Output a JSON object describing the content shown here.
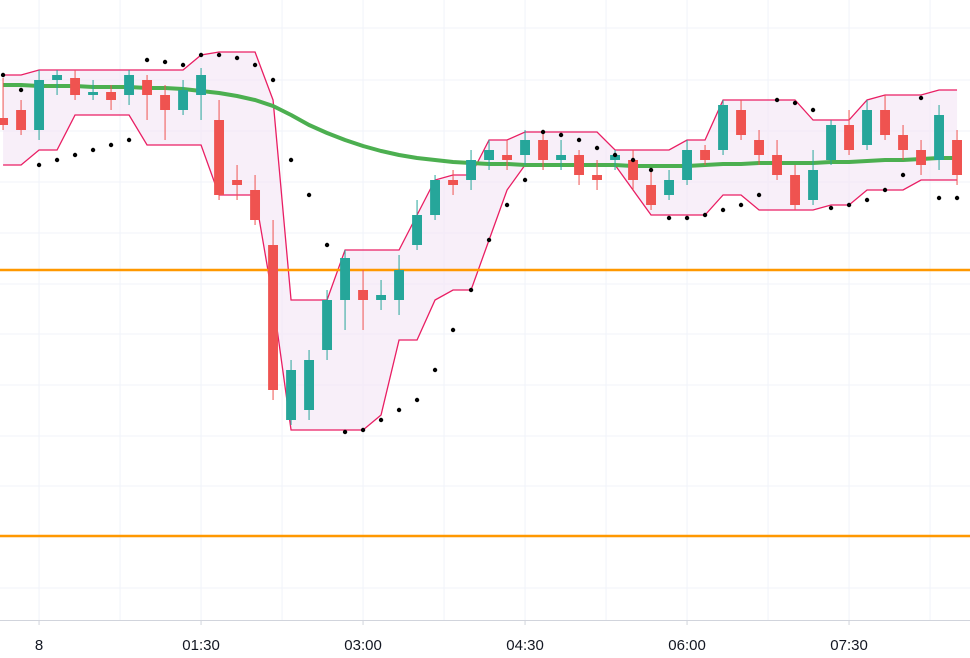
{
  "chart_data": {
    "type": "candlestick",
    "x": [
      -20,
      -10,
      0,
      10,
      20,
      30,
      40,
      50,
      60,
      70,
      80,
      90,
      100,
      110,
      120,
      130,
      140,
      150,
      160,
      170,
      180,
      190,
      200,
      210,
      220,
      230,
      240,
      250,
      260,
      270,
      280,
      290,
      300,
      310,
      320,
      330,
      340,
      350,
      360,
      370,
      380,
      390,
      400,
      410,
      420,
      430,
      440,
      450,
      460,
      470,
      480,
      490,
      500,
      510
    ],
    "open": [
      502,
      510,
      490,
      540,
      542,
      525,
      528,
      525,
      540,
      525,
      510,
      525,
      500,
      440,
      430,
      375,
      200,
      210,
      270,
      320,
      330,
      320,
      320,
      375,
      405,
      440,
      440,
      460,
      465,
      465,
      480,
      460,
      465,
      445,
      460,
      460,
      435,
      425,
      440,
      470,
      470,
      510,
      480,
      465,
      445,
      420,
      460,
      495,
      475,
      510,
      485,
      470,
      460,
      480
    ],
    "high": [
      542,
      520,
      550,
      550,
      550,
      540,
      535,
      550,
      545,
      535,
      540,
      552,
      520,
      455,
      445,
      400,
      260,
      270,
      330,
      370,
      350,
      340,
      365,
      420,
      445,
      450,
      470,
      480,
      480,
      490,
      490,
      480,
      470,
      460,
      470,
      470,
      450,
      450,
      480,
      475,
      520,
      520,
      490,
      480,
      455,
      470,
      500,
      510,
      520,
      525,
      495,
      480,
      515,
      490
    ],
    "low": [
      490,
      485,
      480,
      525,
      520,
      520,
      510,
      515,
      500,
      480,
      505,
      500,
      420,
      420,
      395,
      220,
      195,
      200,
      260,
      290,
      290,
      310,
      305,
      370,
      400,
      425,
      430,
      450,
      450,
      455,
      450,
      450,
      435,
      430,
      450,
      430,
      410,
      420,
      435,
      455,
      465,
      480,
      455,
      440,
      410,
      415,
      455,
      465,
      470,
      480,
      460,
      445,
      450,
      435
    ],
    "close": [
      495,
      490,
      540,
      545,
      525,
      528,
      520,
      545,
      525,
      510,
      530,
      545,
      425,
      435,
      400,
      230,
      250,
      260,
      320,
      362,
      320,
      325,
      350,
      405,
      440,
      435,
      460,
      470,
      460,
      480,
      460,
      465,
      445,
      440,
      465,
      440,
      415,
      440,
      470,
      460,
      515,
      485,
      465,
      445,
      415,
      450,
      495,
      470,
      510,
      485,
      470,
      455,
      505,
      445
    ],
    "up_color": "#26a69a",
    "down_color": "#ef5350",
    "xlim": [
      -21.7,
      517.2
    ],
    "ylim": [
      0,
      620
    ],
    "xticks": [
      {
        "value": 0,
        "label": "8"
      },
      {
        "value": 90,
        "label": "01:30"
      },
      {
        "value": 180,
        "label": "03:00"
      },
      {
        "value": 270,
        "label": "04:30"
      },
      {
        "value": 360,
        "label": "06:00"
      },
      {
        "value": 450,
        "label": "07:30"
      }
    ],
    "xgrid": [
      0,
      45,
      90,
      135,
      180,
      225,
      270,
      315,
      360,
      405,
      450,
      495
    ],
    "ygrid": [
      592,
      540,
      489,
      438,
      387,
      336,
      286,
      235,
      184,
      134,
      83,
      32
    ],
    "channel": {
      "color": "#e91e63",
      "fill": "#f3e5f5",
      "upper": [
        545,
        545,
        550,
        550,
        550,
        550,
        550,
        550,
        550,
        550,
        550,
        565,
        568,
        568,
        568,
        520,
        320,
        320,
        320,
        370,
        370,
        370,
        370,
        405,
        440,
        445,
        445,
        480,
        480,
        488,
        488,
        488,
        488,
        488,
        470,
        470,
        470,
        470,
        480,
        480,
        520,
        520,
        520,
        520,
        520,
        500,
        500,
        500,
        520,
        525,
        525,
        525,
        530,
        530
      ],
      "lower": [
        455,
        455,
        470,
        470,
        505,
        505,
        505,
        505,
        475,
        475,
        475,
        475,
        425,
        425,
        425,
        320,
        190,
        190,
        190,
        190,
        190,
        205,
        280,
        280,
        320,
        330,
        330,
        380,
        430,
        455,
        455,
        455,
        455,
        455,
        455,
        430,
        405,
        405,
        405,
        405,
        425,
        425,
        410,
        410,
        410,
        410,
        415,
        415,
        430,
        430,
        430,
        440,
        440,
        440
      ]
    },
    "ma": {
      "color": "#4caf50",
      "values": [
        535,
        535,
        534,
        534,
        534,
        533,
        533,
        533,
        532,
        532,
        531,
        529,
        527,
        524,
        520,
        514,
        505,
        495,
        487,
        480,
        474,
        469,
        465,
        462,
        460,
        458,
        457,
        456,
        456,
        455,
        455,
        455,
        455,
        455,
        455,
        454,
        454,
        454,
        454,
        455,
        456,
        456,
        457,
        457,
        457,
        457,
        458,
        458,
        459,
        460,
        460,
        461,
        462,
        462
      ]
    },
    "sar": {
      "color": "#000000",
      "values": [
        545,
        530,
        455,
        460,
        465,
        470,
        475,
        480,
        560,
        558,
        555,
        565,
        565,
        562,
        555,
        540,
        460,
        425,
        375,
        188,
        190,
        200,
        210,
        220,
        250,
        290,
        330,
        380,
        415,
        440,
        488,
        485,
        480,
        472,
        465,
        460,
        450,
        402,
        402,
        405,
        410,
        415,
        425,
        520,
        517,
        510,
        412,
        415,
        420,
        430,
        445,
        522,
        422,
        422
      ]
    },
    "hlines": {
      "color": "#ff9800",
      "values": [
        350,
        84
      ]
    }
  }
}
